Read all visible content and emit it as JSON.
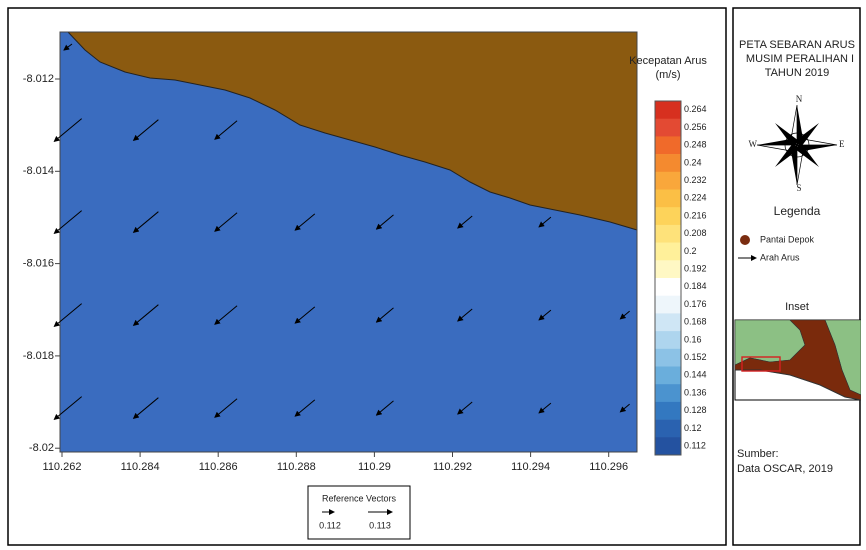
{
  "map": {
    "x_axis_labels": [
      "110.262",
      "110.284",
      "110.286",
      "110.288",
      "110.29",
      "110.292",
      "110.294",
      "110.296"
    ],
    "y_axis_labels": [
      "-8.012",
      "-8.014",
      "-8.016",
      "-8.018",
      "-8.02"
    ],
    "colorbar": {
      "title_lines": [
        "Kecepatan Arus",
        "(m/s)"
      ],
      "labels": [
        "0.264",
        "0.256",
        "0.248",
        "0.24",
        "0.232",
        "0.224",
        "0.216",
        "0.208",
        "0.2",
        "0.192",
        "0.184",
        "0.176",
        "0.168",
        "0.16",
        "0.152",
        "0.144",
        "0.136",
        "0.128",
        "0.12",
        "0.112"
      ]
    },
    "reference": {
      "title": "Reference Vectors",
      "labels": [
        "0.112",
        "0.113"
      ]
    }
  },
  "panel": {
    "title_lines": [
      "PETA SEBARAN ARUS",
      "MUSIM PERALIHAN I",
      "TAHUN 2019"
    ],
    "compass": {
      "n": "N",
      "s": "S",
      "w": "W",
      "e": "E"
    },
    "legend_title": "Legenda",
    "legend_items": [
      "Pantai Depok",
      "Arah Arus"
    ],
    "inset_title": "Inset",
    "source_lines": [
      "Sumber:",
      "Data OSCAR, 2019"
    ]
  }
}
